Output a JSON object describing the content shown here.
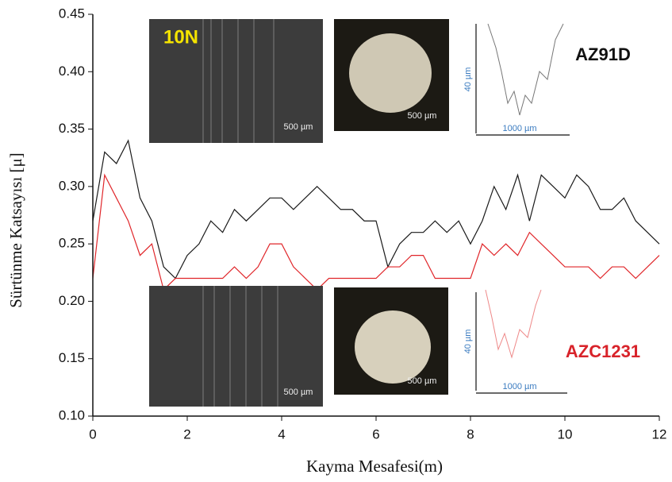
{
  "chart_data": {
    "type": "line",
    "x_label": "Kayma Mesafesi(m)",
    "y_label": "Sürtünme  Katsayısı  [μ]",
    "x": [
      0,
      0.25,
      0.5,
      0.75,
      1,
      1.25,
      1.5,
      1.75,
      2,
      2.25,
      2.5,
      2.75,
      3,
      3.25,
      3.5,
      3.75,
      4,
      4.25,
      4.5,
      4.75,
      5,
      5.25,
      5.5,
      5.75,
      6,
      6.25,
      6.5,
      6.75,
      7,
      7.25,
      7.5,
      7.75,
      8,
      8.25,
      8.5,
      8.75,
      9,
      9.25,
      9.5,
      9.75,
      10,
      10.25,
      10.5,
      10.75,
      11,
      11.25,
      11.5,
      11.75,
      12
    ],
    "series": [
      {
        "name": "AZ91D",
        "color": "#1a1a1a",
        "values": [
          0.27,
          0.33,
          0.32,
          0.34,
          0.29,
          0.27,
          0.23,
          0.22,
          0.24,
          0.25,
          0.27,
          0.26,
          0.28,
          0.27,
          0.28,
          0.29,
          0.29,
          0.28,
          0.29,
          0.3,
          0.29,
          0.28,
          0.28,
          0.27,
          0.27,
          0.23,
          0.25,
          0.26,
          0.26,
          0.27,
          0.26,
          0.27,
          0.25,
          0.27,
          0.3,
          0.28,
          0.31,
          0.27,
          0.31,
          0.3,
          0.29,
          0.31,
          0.3,
          0.28,
          0.28,
          0.29,
          0.27,
          0.26,
          0.25
        ]
      },
      {
        "name": "AZC1231",
        "color": "#e0262a",
        "values": [
          0.22,
          0.31,
          0.29,
          0.27,
          0.24,
          0.25,
          0.21,
          0.22,
          0.22,
          0.22,
          0.22,
          0.22,
          0.23,
          0.22,
          0.23,
          0.25,
          0.25,
          0.23,
          0.22,
          0.21,
          0.22,
          0.22,
          0.22,
          0.22,
          0.22,
          0.23,
          0.23,
          0.24,
          0.24,
          0.22,
          0.22,
          0.22,
          0.22,
          0.25,
          0.24,
          0.25,
          0.24,
          0.26,
          0.25,
          0.24,
          0.23,
          0.23,
          0.23,
          0.22,
          0.23,
          0.23,
          0.22,
          0.23,
          0.24
        ]
      }
    ],
    "xlim": [
      0,
      12
    ],
    "xticks": [
      0,
      2,
      4,
      6,
      8,
      10,
      12
    ],
    "ylim": [
      0.1,
      0.45
    ],
    "yticks": [
      {
        "value": 0.1,
        "label": "0.10"
      },
      0.15,
      {
        "value": 0.2,
        "label": "0.20"
      },
      0.25,
      {
        "value": 0.3,
        "label": "0.30"
      },
      0.35,
      {
        "value": 0.4,
        "label": "0.40"
      },
      0.45
    ],
    "annotations": [
      "10N",
      "AZ91D",
      "AZC1231",
      "500 µm",
      "500 µm",
      "500 µm",
      "500 µm",
      "40 µm",
      "40 µm",
      "1000 µm",
      "1000 µm"
    ]
  }
}
